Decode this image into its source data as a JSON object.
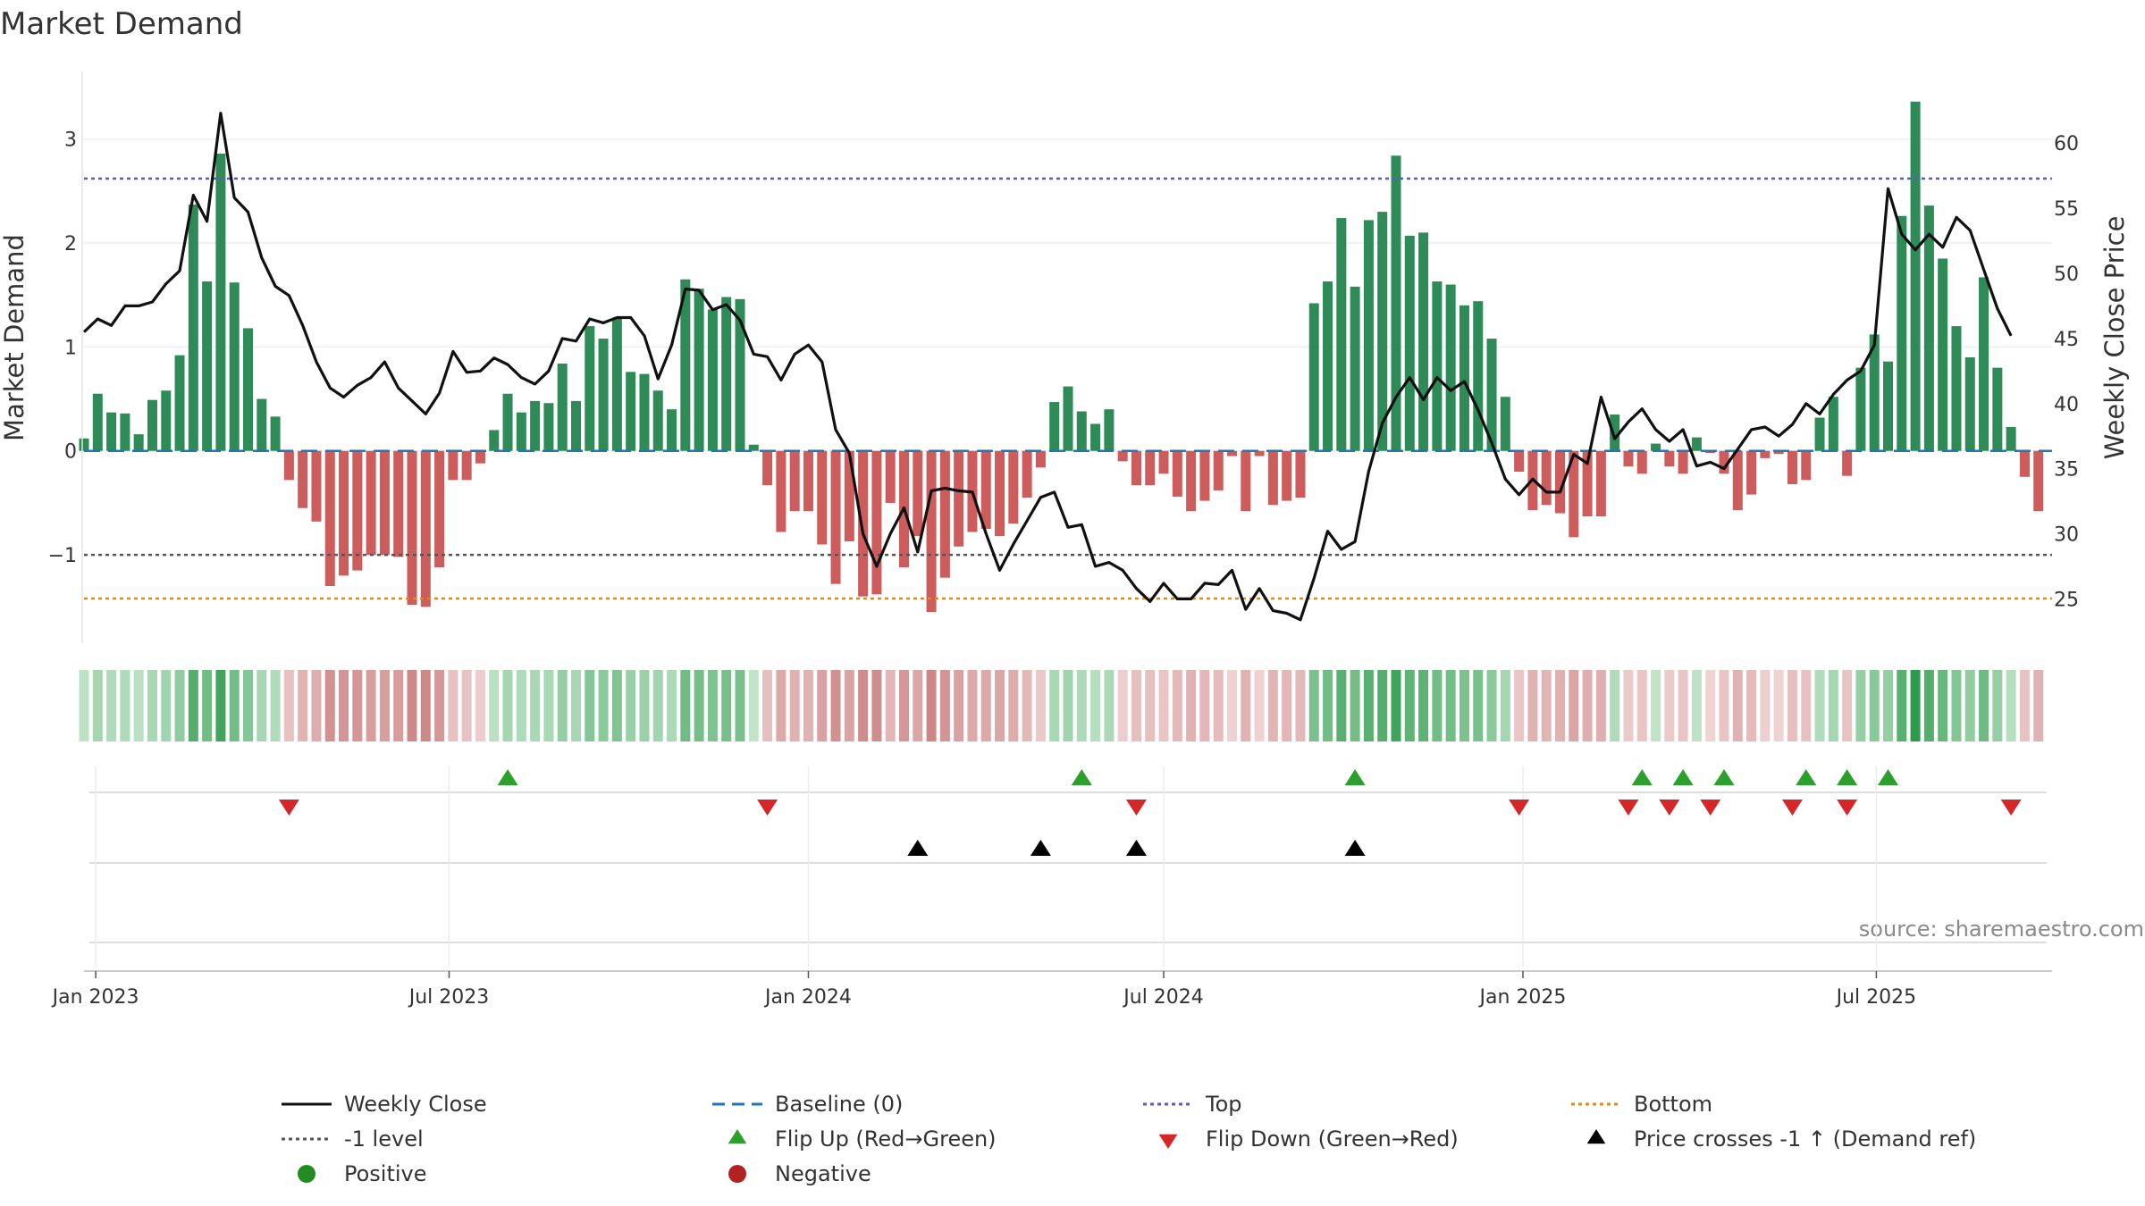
{
  "colors": {
    "pos": "#2e8b57",
    "neg": "#cd5c5c",
    "price": "#111111",
    "top": "#5a5acd",
    "bottom": "#e08a10",
    "level": "#555555",
    "baseline": "#1f77b4",
    "flip_up": "#2ca02c",
    "flip_down": "#d62728",
    "cross": "#000000",
    "positive_dot": "#228b22",
    "negative_dot": "#b22222"
  },
  "chart_data": {
    "type": "bar+line",
    "title": "Market Demand",
    "ylabel_left": "Market Demand",
    "ylabel_right": "Weekly Close Price",
    "ylim_left": [
      -1.85,
      3.65
    ],
    "ylim_right": [
      21.6,
      65.5
    ],
    "yticks_left": [
      -1,
      0,
      1,
      2,
      3
    ],
    "ytick_labels_left": [
      "−1",
      "0",
      "1",
      "2",
      "3"
    ],
    "yticks_right": [
      25,
      30,
      35,
      40,
      45,
      50,
      55,
      60
    ],
    "x_start_date": "2022-12-26",
    "x_end_date": "2025-09-29",
    "x_ticks": [
      {
        "date": "2023-01-01",
        "label": "Jan 2023"
      },
      {
        "date": "2023-07-01",
        "label": "Jul 2023"
      },
      {
        "date": "2024-01-01",
        "label": "Jan 2024"
      },
      {
        "date": "2024-07-01",
        "label": "Jul 2024"
      },
      {
        "date": "2025-01-01",
        "label": "Jan 2025"
      },
      {
        "date": "2025-07-01",
        "label": "Jul 2025"
      }
    ],
    "first_week": "2022-12-26",
    "demand": [
      0.12,
      0.55,
      0.37,
      0.36,
      0.16,
      0.49,
      0.58,
      0.92,
      2.37,
      1.63,
      2.86,
      1.62,
      1.18,
      0.5,
      0.33,
      -0.28,
      -0.55,
      -0.68,
      -1.3,
      -1.2,
      -1.15,
      -1.0,
      -1.0,
      -1.02,
      -1.48,
      -1.5,
      -1.12,
      -0.28,
      -0.28,
      -0.12,
      0.2,
      0.55,
      0.37,
      0.48,
      0.46,
      0.84,
      0.48,
      1.2,
      1.08,
      1.28,
      0.76,
      0.74,
      0.58,
      0.4,
      1.65,
      1.56,
      1.36,
      1.48,
      1.46,
      0.06,
      -0.33,
      -0.78,
      -0.58,
      -0.58,
      -0.9,
      -1.28,
      -0.87,
      -1.4,
      -1.38,
      -0.5,
      -1.12,
      -0.82,
      -1.55,
      -1.22,
      -0.92,
      -0.78,
      -0.75,
      -0.82,
      -0.7,
      -0.45,
      -0.16,
      0.47,
      0.62,
      0.38,
      0.26,
      0.4,
      -0.1,
      -0.33,
      -0.33,
      -0.22,
      -0.44,
      -0.58,
      -0.48,
      -0.38,
      -0.05,
      -0.58,
      -0.05,
      -0.52,
      -0.48,
      -0.45,
      1.42,
      1.63,
      2.24,
      1.58,
      2.22,
      2.3,
      2.84,
      2.07,
      2.1,
      1.63,
      1.6,
      1.4,
      1.44,
      1.08,
      0.52,
      -0.2,
      -0.57,
      -0.52,
      -0.6,
      -0.83,
      -0.63,
      -0.63,
      0.35,
      -0.15,
      -0.22,
      0.07,
      -0.15,
      -0.22,
      0.13,
      -0.02,
      -0.22,
      -0.57,
      -0.42,
      -0.07,
      -0.03,
      -0.32,
      -0.28,
      0.32,
      0.52,
      -0.24,
      0.8,
      1.12,
      0.86,
      2.26,
      3.36,
      2.36,
      1.85,
      1.2,
      0.9,
      1.67,
      0.8,
      0.23,
      -0.25,
      -0.58
    ],
    "price": [
      45.5,
      46.5,
      46.0,
      47.5,
      47.5,
      47.8,
      49.2,
      50.2,
      56.0,
      54.0,
      62.3,
      55.8,
      54.7,
      51.2,
      49.0,
      48.3,
      46.0,
      43.2,
      41.2,
      40.5,
      41.4,
      42.0,
      43.2,
      41.2,
      40.2,
      39.2,
      40.8,
      44.0,
      42.4,
      42.5,
      43.5,
      43.0,
      42.0,
      41.5,
      42.5,
      45.0,
      44.8,
      46.5,
      46.2,
      46.6,
      46.6,
      45.2,
      41.9,
      44.5,
      48.8,
      48.7,
      47.2,
      47.6,
      46.4,
      43.8,
      43.6,
      41.8,
      43.8,
      44.5,
      43.2,
      38.0,
      36.2,
      30.0,
      27.5,
      30.0,
      32.0,
      28.6,
      33.3,
      33.5,
      33.3,
      33.2,
      30.0,
      27.2,
      29.2,
      31.0,
      32.8,
      33.2,
      30.5,
      30.7,
      27.5,
      27.8,
      27.2,
      25.8,
      24.8,
      26.2,
      25.0,
      25.0,
      26.2,
      26.1,
      27.2,
      24.2,
      25.8,
      24.1,
      23.9,
      23.4,
      26.6,
      30.2,
      28.8,
      29.4,
      34.8,
      38.5,
      40.5,
      42.0,
      40.3,
      42.0,
      41.0,
      41.7,
      39.5,
      37.0,
      34.2,
      33.0,
      34.2,
      33.2,
      33.2,
      36.1,
      35.4,
      40.5,
      37.3,
      38.6,
      39.6,
      38.0,
      37.1,
      38.0,
      35.2,
      35.5,
      35.0,
      36.5,
      38.0,
      38.2,
      37.5,
      38.4,
      40.0,
      39.2,
      40.7,
      41.8,
      42.5,
      44.5,
      56.5,
      53.0,
      51.8,
      53.0,
      52.0,
      54.3,
      53.3,
      50.3,
      47.3,
      45.2
    ],
    "thresholds": {
      "top": 2.62,
      "minus1": -1.0,
      "bottom": -1.42,
      "baseline": 0
    },
    "flip_up_weeks": [
      31,
      73,
      93,
      114,
      117,
      120,
      126,
      129,
      132
    ],
    "flip_down_weeks": [
      15,
      50,
      77,
      105,
      113,
      116,
      119,
      125,
      129,
      141
    ],
    "cross_weeks": [
      61,
      70,
      77,
      93
    ],
    "source": "source: sharemaestro.com",
    "legend": [
      {
        "key": "close",
        "label": "Weekly Close"
      },
      {
        "key": "baseline",
        "label": "Baseline (0)"
      },
      {
        "key": "top",
        "label": "Top"
      },
      {
        "key": "bottom",
        "label": "Bottom"
      },
      {
        "key": "minus1",
        "label": "-1 level"
      },
      {
        "key": "flip_up",
        "label": "Flip Up (Red→Green)"
      },
      {
        "key": "flip_down",
        "label": "Flip Down (Green→Red)"
      },
      {
        "key": "cross",
        "label": "Price crosses -1 ↑ (Demand ref)"
      },
      {
        "key": "positive",
        "label": "Positive"
      },
      {
        "key": "negative",
        "label": "Negative"
      }
    ]
  }
}
